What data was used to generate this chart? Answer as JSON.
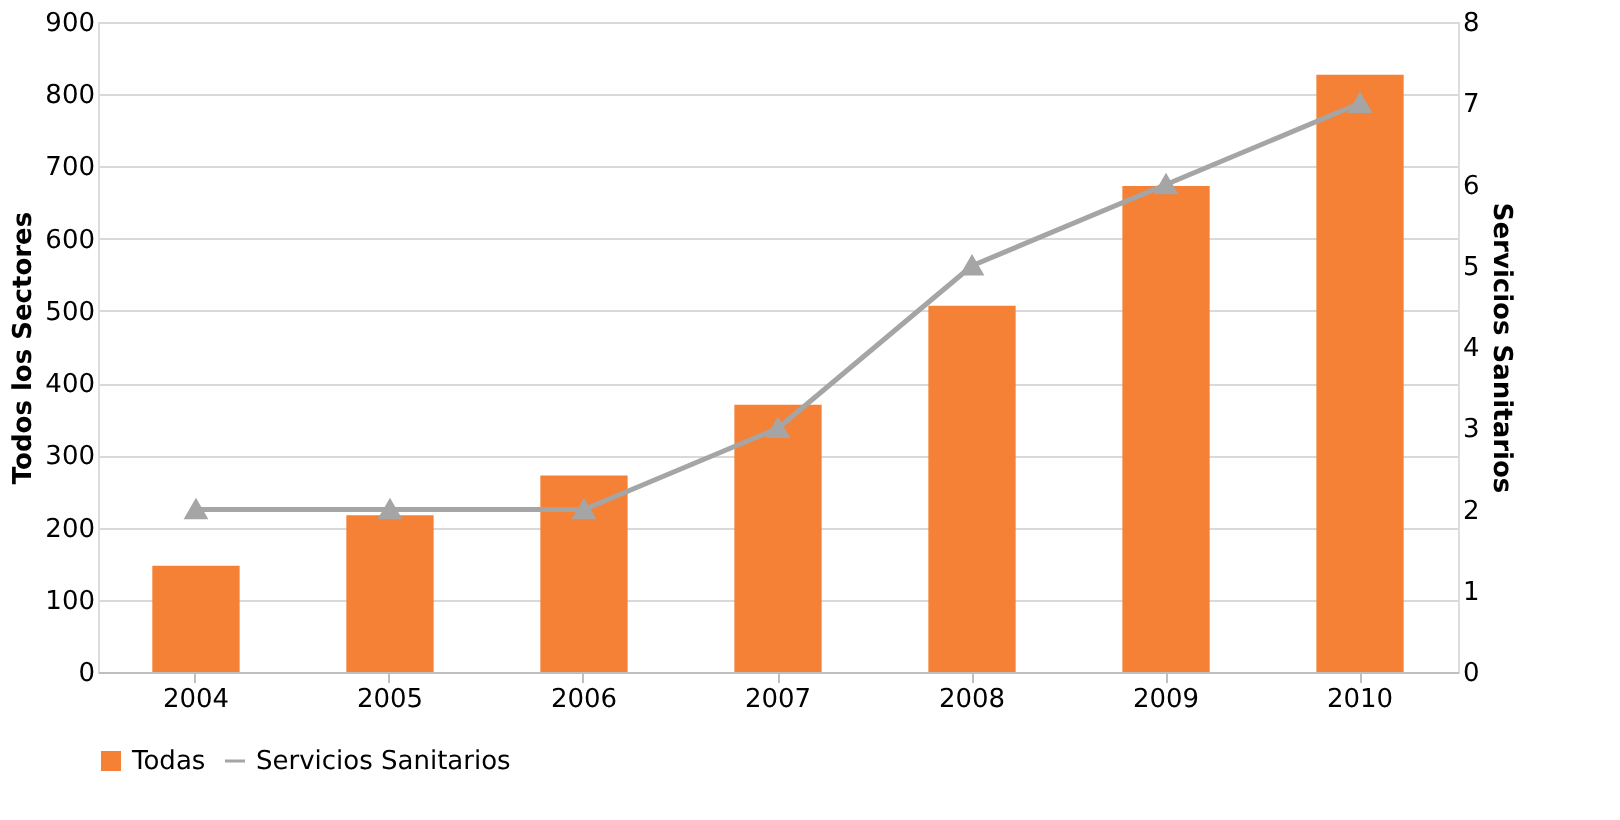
{
  "chart_data": {
    "type": "bar",
    "categories": [
      "2004",
      "2005",
      "2006",
      "2007",
      "2008",
      "2009",
      "2010"
    ],
    "series": [
      {
        "name": "Todas",
        "color": "#f58136",
        "values": [
          147,
          217,
          272,
          370,
          507,
          673,
          827
        ]
      },
      {
        "name": "Servicios Sanitarios",
        "type": "line",
        "axis": "y2",
        "color": "#a5a5a5",
        "marker": "triangle",
        "values": [
          2,
          2,
          2,
          3,
          5,
          6,
          7
        ]
      }
    ],
    "ylabel": "Todos los Sectores",
    "y2label": "Servicios Sanitarios",
    "ylim": [
      0,
      900
    ],
    "yticks": [
      0,
      100,
      200,
      300,
      400,
      500,
      600,
      700,
      800,
      900
    ],
    "y2lim": [
      0,
      8
    ],
    "y2ticks": [
      0,
      1,
      2,
      3,
      4,
      5,
      6,
      7,
      8
    ],
    "grid": "y",
    "legend": "bottom"
  }
}
